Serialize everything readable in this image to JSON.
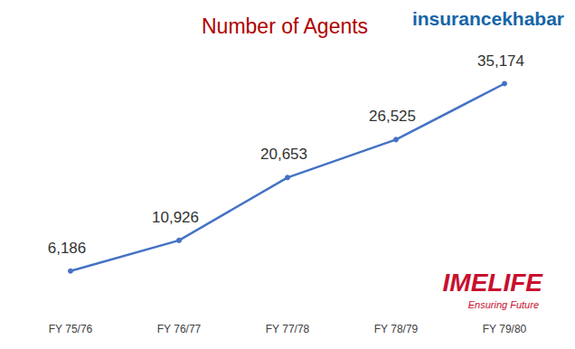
{
  "chart_data": {
    "type": "line",
    "title": "Number of Agents",
    "categories": [
      "FY 75/76",
      "FY 76/77",
      "FY 77/78",
      "FY 78/79",
      "FY 79/80"
    ],
    "values": [
      6186,
      10926,
      20653,
      26525,
      35174
    ],
    "value_labels": [
      "6,186",
      "10,926",
      "20,653",
      "26,525",
      "35,174"
    ],
    "color": "#4472c4",
    "ylim": [
      0,
      40000
    ],
    "yticks": [
      0,
      40000
    ],
    "grid": false,
    "data_labels": true,
    "tick_labels": "x",
    "marker": "circle",
    "annotations": [
      "insurancekhabar",
      "IMELIFE",
      "Ensuring Future"
    ]
  }
}
